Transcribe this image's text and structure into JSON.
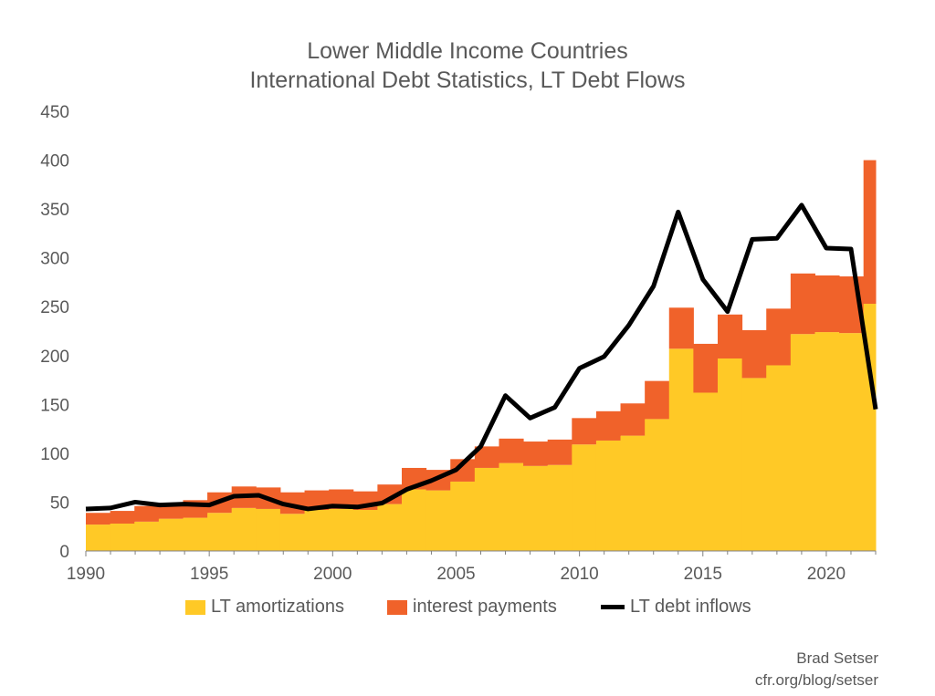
{
  "title": "Lower Middle Income Countries",
  "subtitle": "International Debt Statistics, LT Debt Flows",
  "credit_name": "Brad Setser",
  "credit_url": "cfr.org/blog/setser",
  "colors": {
    "amortizations": "#FFC926",
    "interest": "#F0622A",
    "inflows": "#000000"
  },
  "chart_data": {
    "type": "bar",
    "stacked": true,
    "x": [
      1990,
      1991,
      1992,
      1993,
      1994,
      1995,
      1996,
      1997,
      1998,
      1999,
      2000,
      2001,
      2002,
      2003,
      2004,
      2005,
      2006,
      2007,
      2008,
      2009,
      2010,
      2011,
      2012,
      2013,
      2014,
      2015,
      2016,
      2017,
      2018,
      2019,
      2020,
      2021,
      2022
    ],
    "series": [
      {
        "name": "LT amortizations",
        "type": "bar",
        "values": [
          27,
          28,
          30,
          33,
          34,
          39,
          44,
          43,
          38,
          42,
          43,
          42,
          48,
          63,
          62,
          71,
          85,
          90,
          87,
          88,
          109,
          113,
          118,
          135,
          207,
          162,
          197,
          177,
          190,
          222,
          224,
          223,
          253
        ]
      },
      {
        "name": "interest payments",
        "type": "bar",
        "values": [
          12,
          13,
          16,
          15,
          18,
          21,
          22,
          22,
          22,
          20,
          20,
          19,
          20,
          22,
          21,
          23,
          22,
          25,
          25,
          26,
          27,
          30,
          33,
          39,
          42,
          50,
          45,
          49,
          58,
          62,
          58,
          58,
          147
        ]
      },
      {
        "name": "LT debt inflows",
        "type": "line",
        "values": [
          43,
          44,
          50,
          47,
          48,
          47,
          56,
          57,
          48,
          43,
          46,
          45,
          49,
          63,
          72,
          83,
          107,
          159,
          136,
          147,
          187,
          199,
          231,
          271,
          347,
          278,
          245,
          319,
          320,
          354,
          310,
          309,
          145
        ]
      }
    ],
    "ylim": [
      0,
      450
    ],
    "yticks": [
      0,
      50,
      100,
      150,
      200,
      250,
      300,
      350,
      400,
      450
    ],
    "xticks": [
      1990,
      1995,
      2000,
      2005,
      2010,
      2015,
      2020
    ],
    "xlim": [
      1990,
      2022
    ],
    "grid": false,
    "legend": "bottom"
  }
}
